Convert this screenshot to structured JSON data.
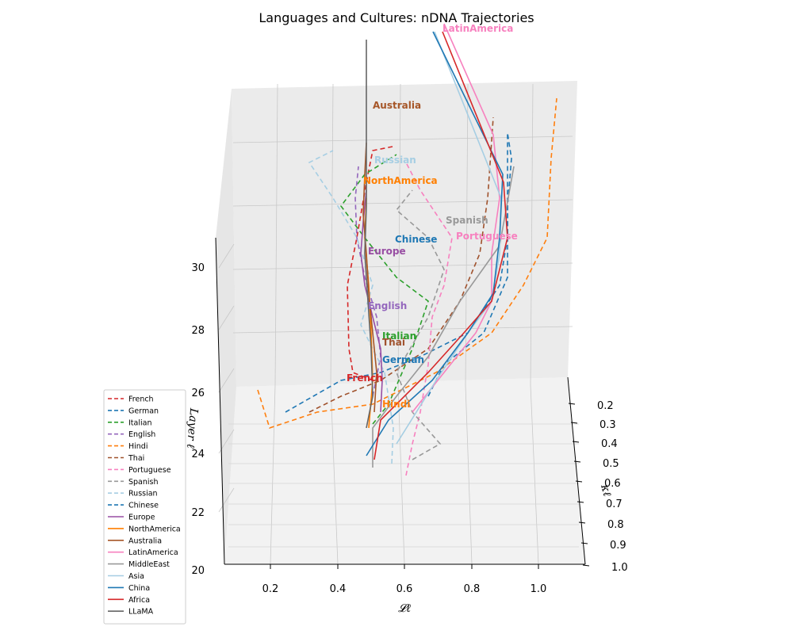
{
  "chart_data": {
    "type": "line",
    "projection": "3d",
    "title": "Languages and Cultures: nDNA Trajectories",
    "xlabel": "𝓛ℓ",
    "ylabel": "κℓ",
    "zlabel": "Layer ℓ",
    "x_ticks": [
      "0.2",
      "0.4",
      "0.6",
      "0.8",
      "1.0"
    ],
    "y_ticks": [
      "0.2",
      "0.3",
      "0.4",
      "0.5",
      "0.6",
      "0.7",
      "0.8",
      "0.9",
      "1.0"
    ],
    "z_ticks": [
      "20",
      "22",
      "24",
      "26",
      "28",
      "30"
    ],
    "xlim": [
      0.05,
      1.1
    ],
    "ylim": [
      0.15,
      1.0
    ],
    "zlim": [
      20,
      31
    ],
    "legend_position": "lower-left",
    "grid": true,
    "series": [
      {
        "name": "French",
        "style": "dashed",
        "color": "#d62728",
        "label_visible": true
      },
      {
        "name": "German",
        "style": "dashed",
        "color": "#1f77b4",
        "label_visible": true
      },
      {
        "name": "Italian",
        "style": "dashed",
        "color": "#2ca02c",
        "label_visible": true
      },
      {
        "name": "English",
        "style": "dashed",
        "color": "#9467bd",
        "label_visible": true
      },
      {
        "name": "Hindi",
        "style": "dashed",
        "color": "#ff7f0e",
        "label_visible": true
      },
      {
        "name": "Thai",
        "style": "dashed",
        "color": "#a0522d",
        "label_visible": true
      },
      {
        "name": "Portuguese",
        "style": "dashed",
        "color": "#f781bf",
        "label_visible": true
      },
      {
        "name": "Spanish",
        "style": "dashed",
        "color": "#999999",
        "label_visible": true
      },
      {
        "name": "Russian",
        "style": "dashed",
        "color": "#a6cee3",
        "label_visible": true
      },
      {
        "name": "Chinese",
        "style": "dashed",
        "color": "#1f78b4",
        "label_visible": true
      },
      {
        "name": "Europe",
        "style": "solid",
        "color": "#984ea3",
        "label_visible": true
      },
      {
        "name": "NorthAmerica",
        "style": "solid",
        "color": "#ff7f00",
        "label_visible": true
      },
      {
        "name": "Australia",
        "style": "solid",
        "color": "#a65628",
        "label_visible": true
      },
      {
        "name": "LatinAmerica",
        "style": "solid",
        "color": "#f781bf",
        "label_visible": true
      },
      {
        "name": "MiddleEast",
        "style": "solid",
        "color": "#999999",
        "label_visible": false
      },
      {
        "name": "Asia",
        "style": "solid",
        "color": "#a6cee3",
        "label_visible": false
      },
      {
        "name": "China",
        "style": "solid",
        "color": "#1f78b4",
        "label_visible": false
      },
      {
        "name": "Africa",
        "style": "solid",
        "color": "#d62728",
        "label_visible": false
      },
      {
        "name": "LLaMA",
        "style": "solid",
        "color": "#666666",
        "label_visible": false
      }
    ]
  }
}
